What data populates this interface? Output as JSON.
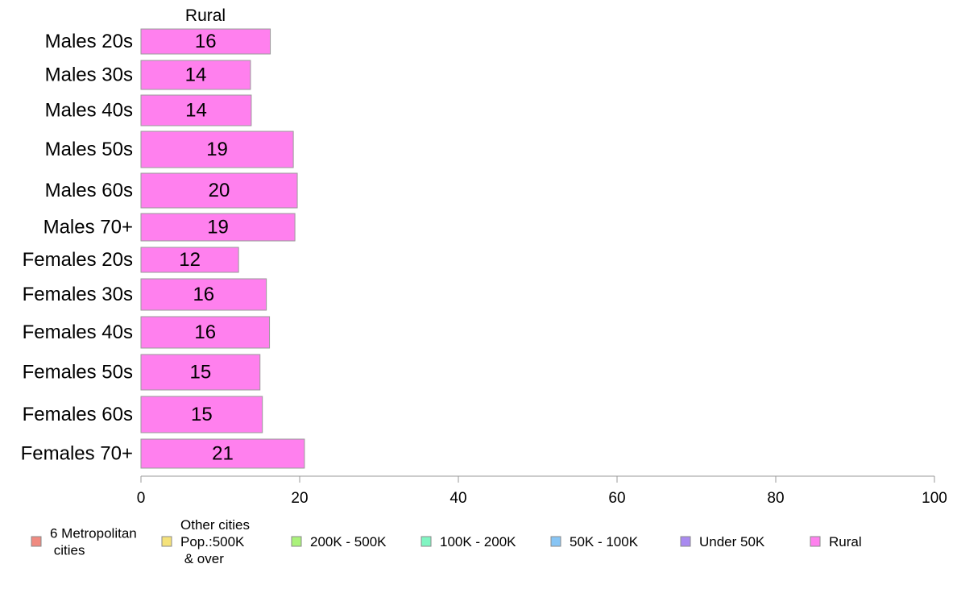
{
  "chart_data": {
    "type": "bar",
    "orientation": "horizontal",
    "panel_title": "Rural",
    "categories": [
      "Males 20s",
      "Males 30s",
      "Males 40s",
      "Males 50s",
      "Males 60s",
      "Males 70+",
      "Females 20s",
      "Females 30s",
      "Females 40s",
      "Females 50s",
      "Females 60s",
      "Females 70+"
    ],
    "series": [
      {
        "name": "Rural",
        "color": "#ff80ee",
        "values": [
          16.3,
          13.8,
          13.9,
          19.2,
          19.7,
          19.4,
          12.3,
          15.8,
          16.2,
          15.0,
          15.3,
          20.6
        ],
        "labels": [
          "16",
          "14",
          "14",
          "19",
          "20",
          "19",
          "12",
          "16",
          "16",
          "15",
          "15",
          "21"
        ]
      }
    ],
    "xlim": [
      0,
      100
    ],
    "xticks": [
      "0",
      "20",
      "40",
      "60",
      "80",
      "100"
    ],
    "xlabel": "",
    "ylabel": "",
    "grid": false,
    "legend": {
      "position": "bottom",
      "entries": [
        {
          "label": [
            "6 Metropolitan",
            " cities"
          ],
          "color": "#f08a80"
        },
        {
          "label": [
            "Other cities",
            "Pop.:500K",
            " & over"
          ],
          "color": "#f5e27a"
        },
        {
          "label": [
            "200K - 500K"
          ],
          "color": "#aaf27a"
        },
        {
          "label": [
            "100K - 200K"
          ],
          "color": "#80f5c2"
        },
        {
          "label": [
            "50K - 100K"
          ],
          "color": "#87c5f5"
        },
        {
          "label": [
            "Under 50K"
          ],
          "color": "#a98af0"
        },
        {
          "label": [
            "Rural"
          ],
          "color": "#ff80ee"
        }
      ]
    }
  }
}
